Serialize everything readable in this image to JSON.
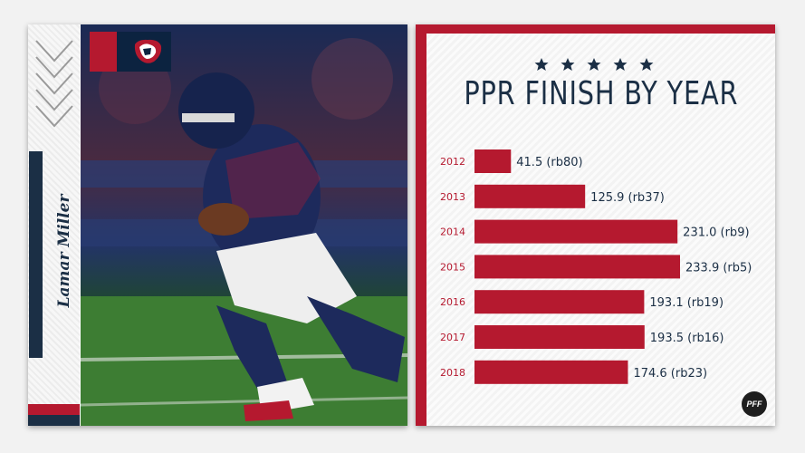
{
  "player": {
    "name": "Lamar Miller"
  },
  "colors": {
    "red": "#b5192f",
    "navy": "#1b2f45"
  },
  "icons": {
    "logo": "texans-logo-icon",
    "brand": "pff-logo-icon"
  },
  "brand": {
    "label": "PFF"
  },
  "chart_data": {
    "type": "bar",
    "orientation": "horizontal",
    "title": "PPR FINISH BY YEAR",
    "categories": [
      "2012",
      "2013",
      "2014",
      "2015",
      "2016",
      "2017",
      "2018"
    ],
    "values": [
      41.5,
      125.9,
      231.0,
      233.9,
      193.1,
      193.5,
      174.6
    ],
    "labels": [
      "41.5 (rb80)",
      "125.9 (rb37)",
      "231.0 (rb9)",
      "233.9 (rb5)",
      "193.1 (rb19)",
      "193.5 (rb16)",
      "174.6 (rb23)"
    ],
    "xlim": [
      0,
      233.9
    ],
    "grid": false,
    "legend": "none"
  }
}
